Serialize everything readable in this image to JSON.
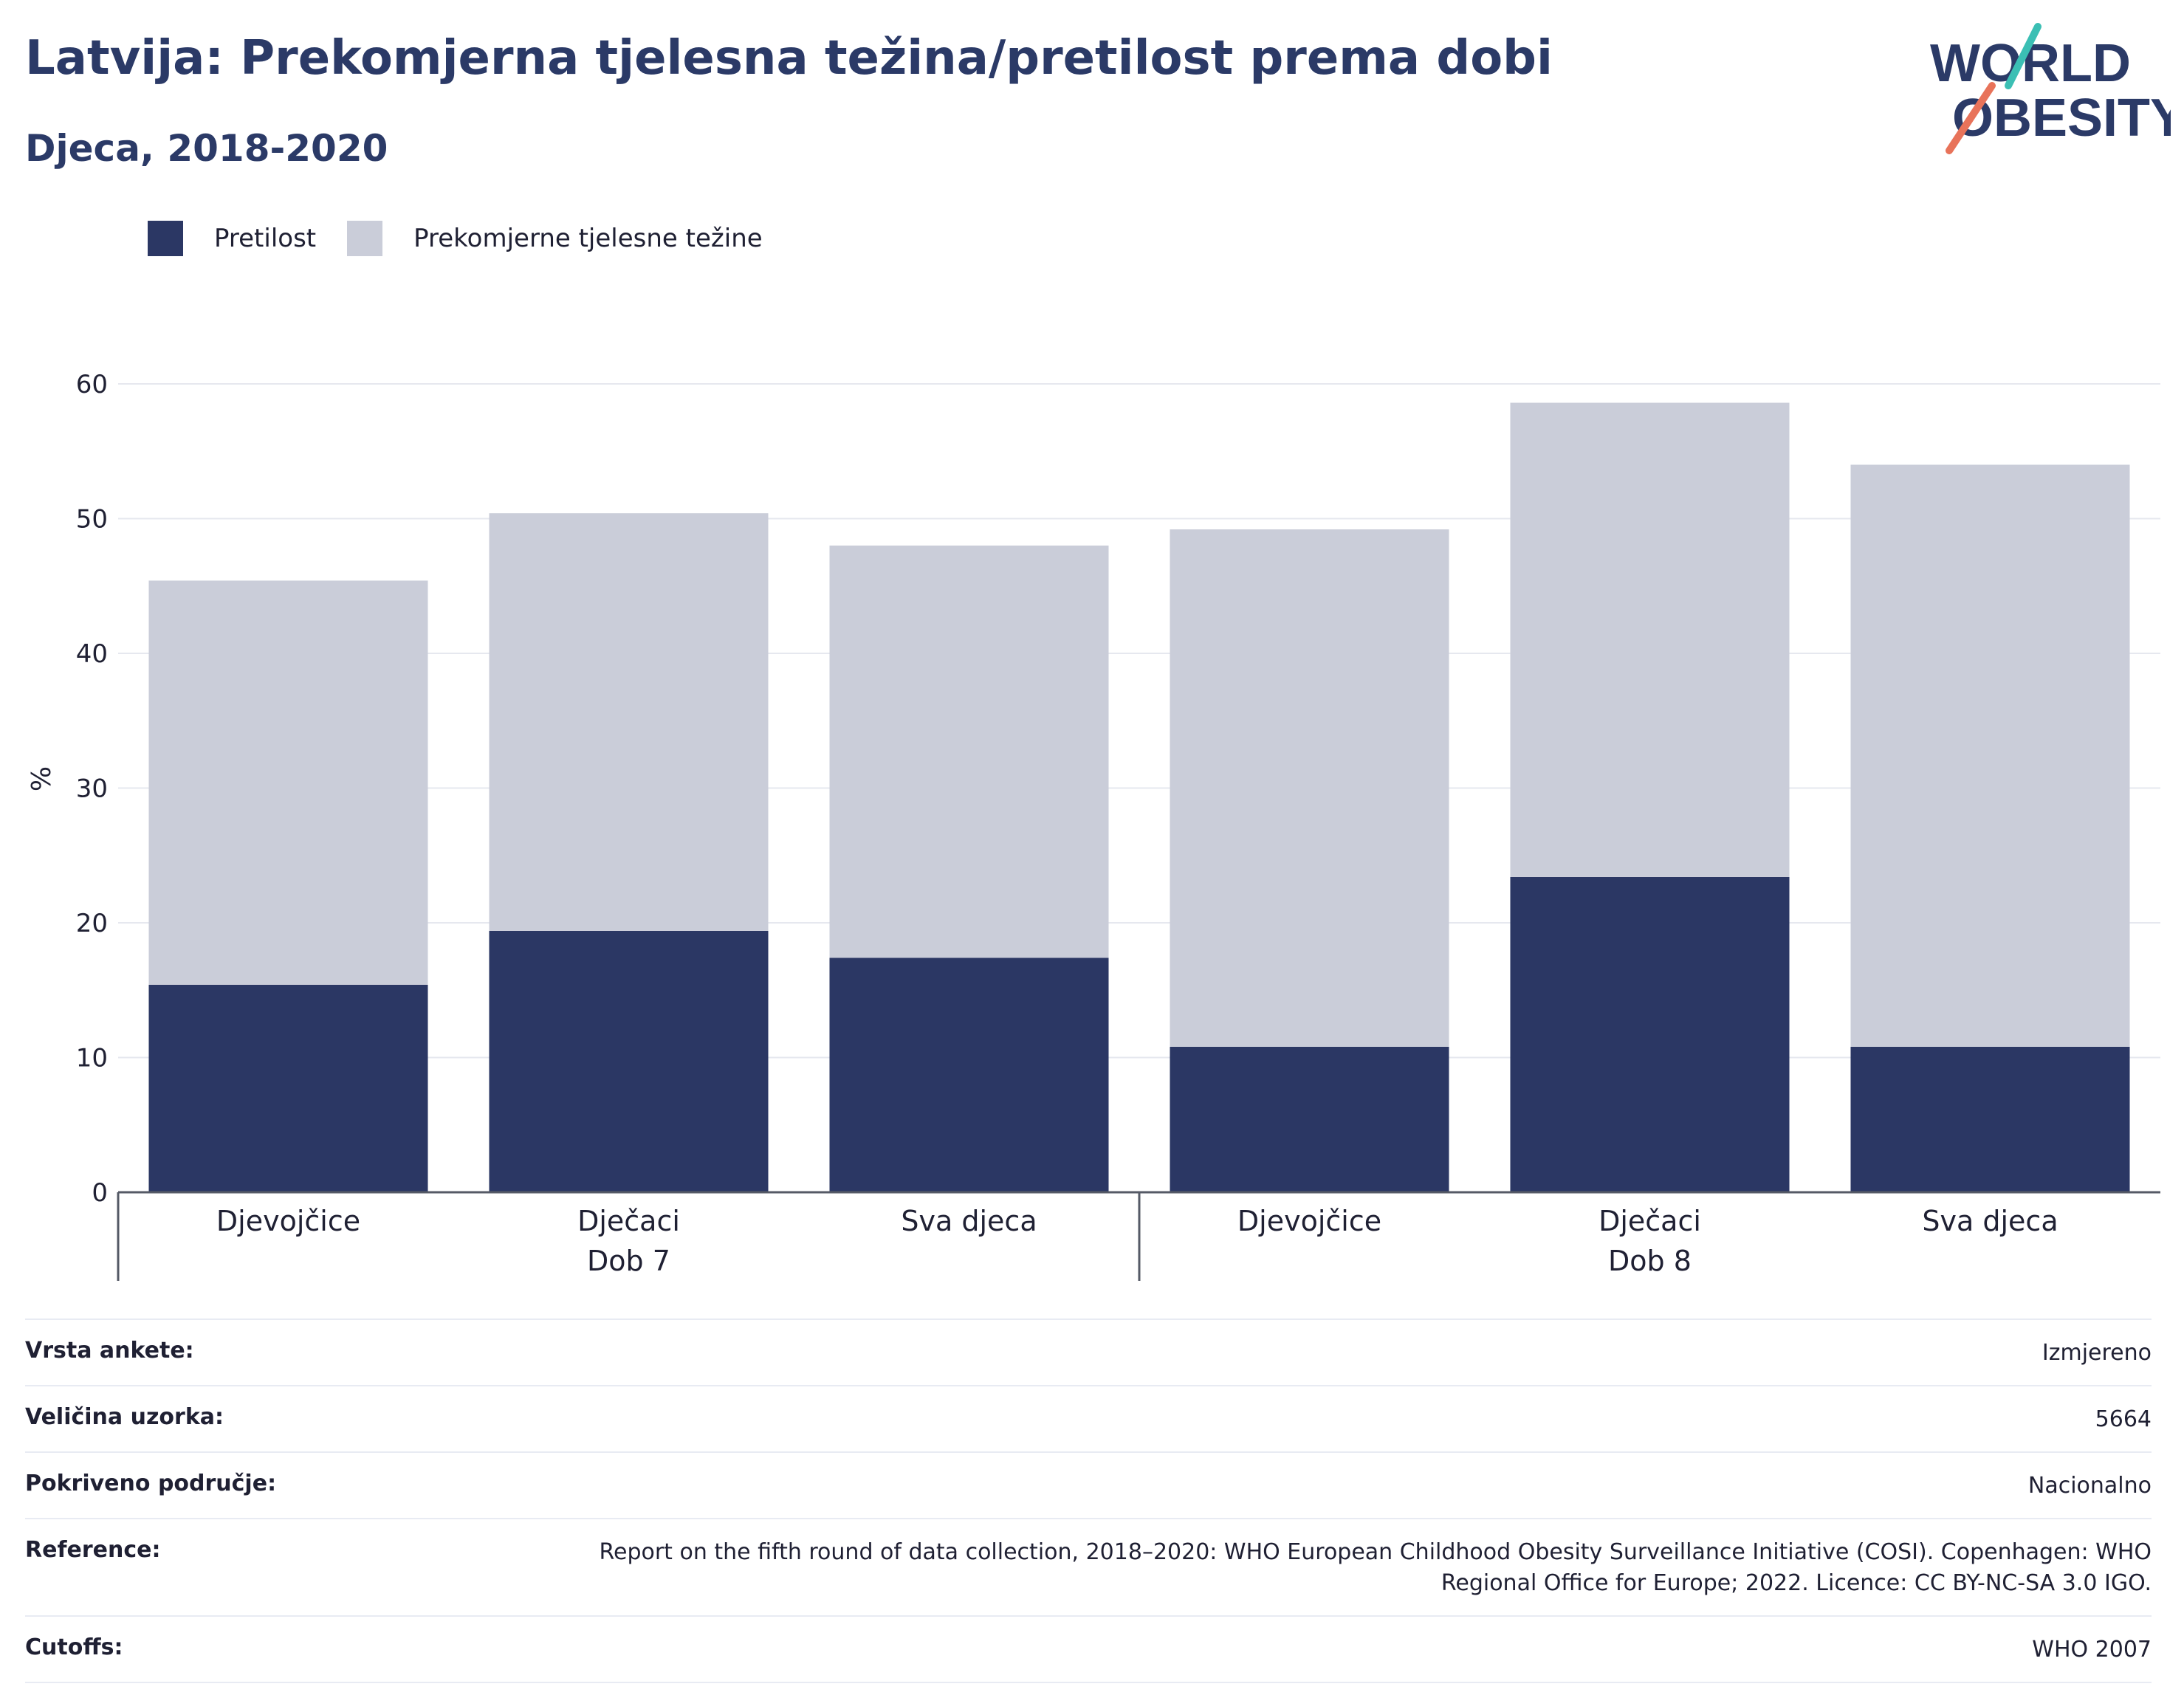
{
  "title": "Latvija: Prekomjerna tjelesna težina/pretilost prema dobi",
  "subtitle": "Djeca, 2018-2020",
  "logo": {
    "line1": "WORLD",
    "line2": "OBESITY",
    "accent_teal": "#3bbfb4",
    "accent_coral": "#e8735a"
  },
  "legend": [
    {
      "label": "Pretilost",
      "color": "#2b3764"
    },
    {
      "label": "Prekomjerne tjelesne težine",
      "color": "#cacdd9"
    }
  ],
  "chart_data": {
    "type": "bar",
    "stacked": true,
    "ylabel": "%",
    "ylim": [
      0,
      60
    ],
    "yticks": [
      0,
      10,
      20,
      30,
      40,
      50,
      60
    ],
    "grid": true,
    "legend_position": "top-left",
    "categories": [
      "Djevojčice",
      "Dječaci",
      "Sva djeca",
      "Djevojčice",
      "Dječaci",
      "Sva djeca"
    ],
    "groups": [
      {
        "label": "Dob 7",
        "categories": [
          "Djevojčice",
          "Dječaci",
          "Sva djeca"
        ]
      },
      {
        "label": "Dob 8",
        "categories": [
          "Djevojčice",
          "Dječaci",
          "Sva djeca"
        ]
      }
    ],
    "series": [
      {
        "name": "Pretilost",
        "color": "#2b3764",
        "values": [
          15.4,
          19.4,
          17.4,
          10.8,
          23.4,
          10.8
        ]
      },
      {
        "name": "Prekomjerne tjelesne težine",
        "color": "#cacdd9",
        "values": [
          30.0,
          31.0,
          30.6,
          38.4,
          35.2,
          43.2
        ]
      }
    ]
  },
  "meta": [
    {
      "label": "Vrsta ankete:",
      "value": "Izmjereno"
    },
    {
      "label": "Veličina uzorka:",
      "value": "5664"
    },
    {
      "label": "Pokriveno područje:",
      "value": "Nacionalno"
    },
    {
      "label": "Reference:",
      "value": "Report on the fifth round of data collection, 2018–2020: WHO European Childhood Obesity Surveillance Initiative (COSI). Copenhagen: WHO Regional Office for Europe; 2022. Licence: CC BY-NC-SA 3.0 IGO."
    },
    {
      "label": "Cutoffs:",
      "value": "WHO 2007"
    }
  ]
}
